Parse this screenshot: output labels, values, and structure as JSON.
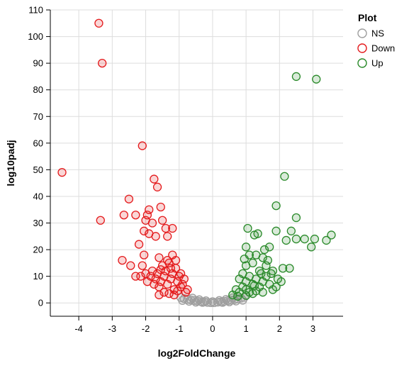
{
  "chart_data": {
    "type": "scatter",
    "xlabel": "log2FoldChange",
    "ylabel": "log10padj",
    "xlim": [
      -4.85,
      3.9
    ],
    "ylim": [
      -5,
      110
    ],
    "x_ticks": [
      -4,
      -3,
      -2,
      -1,
      0,
      1,
      2,
      3
    ],
    "y_ticks": [
      0,
      10,
      20,
      30,
      40,
      50,
      60,
      70,
      80,
      90,
      100,
      110
    ],
    "grid": true,
    "legend": {
      "title": "Plot",
      "placement": "top-right",
      "entries": [
        {
          "label": "NS",
          "color": "#9e9e9e"
        },
        {
          "label": "Down",
          "color": "#e41a1c"
        },
        {
          "label": "Up",
          "color": "#2a8a2a"
        }
      ]
    },
    "series": [
      {
        "name": "NS",
        "color": "#9e9e9e",
        "points": [
          [
            -0.95,
            2.0
          ],
          [
            -0.85,
            1.6
          ],
          [
            -0.75,
            1.3
          ],
          [
            -0.65,
            1.1
          ],
          [
            -0.55,
            0.9
          ],
          [
            -0.45,
            0.7
          ],
          [
            -0.35,
            0.5
          ],
          [
            -0.25,
            0.4
          ],
          [
            -0.15,
            0.2
          ],
          [
            -0.05,
            0.1
          ],
          [
            0.05,
            0.1
          ],
          [
            0.15,
            0.3
          ],
          [
            0.25,
            0.4
          ],
          [
            0.35,
            0.6
          ],
          [
            0.45,
            0.8
          ],
          [
            0.55,
            1.0
          ],
          [
            0.65,
            1.2
          ],
          [
            0.75,
            1.5
          ],
          [
            0.85,
            1.8
          ],
          [
            0.95,
            2.1
          ],
          [
            -0.7,
            0.6
          ],
          [
            -0.5,
            0.3
          ],
          [
            -0.3,
            0.2
          ],
          [
            0.3,
            0.2
          ],
          [
            0.5,
            0.4
          ],
          [
            0.7,
            0.7
          ],
          [
            -0.6,
            1.8
          ],
          [
            -0.4,
            1.2
          ],
          [
            0.4,
            1.3
          ],
          [
            0.6,
            1.9
          ],
          [
            -0.2,
            0.8
          ],
          [
            0.2,
            0.9
          ],
          [
            -0.9,
            0.9
          ],
          [
            0.9,
            1.0
          ],
          [
            0.0,
            0.5
          ]
        ]
      },
      {
        "name": "Down",
        "color": "#e41a1c",
        "points": [
          [
            -3.4,
            105.0
          ],
          [
            -3.3,
            90.0
          ],
          [
            -4.5,
            49.0
          ],
          [
            -2.1,
            59.0
          ],
          [
            -1.75,
            46.5
          ],
          [
            -1.65,
            43.5
          ],
          [
            -2.5,
            39.0
          ],
          [
            -3.35,
            31.0
          ],
          [
            -2.65,
            33.0
          ],
          [
            -2.3,
            33.0
          ],
          [
            -1.55,
            36.0
          ],
          [
            -1.9,
            35.0
          ],
          [
            -1.95,
            33.0
          ],
          [
            -2.0,
            31.0
          ],
          [
            -1.8,
            30.0
          ],
          [
            -1.5,
            31.0
          ],
          [
            -1.4,
            28.0
          ],
          [
            -1.2,
            28.0
          ],
          [
            -2.05,
            27.0
          ],
          [
            -1.9,
            26.0
          ],
          [
            -1.7,
            25.0
          ],
          [
            -1.35,
            25.0
          ],
          [
            -2.2,
            22.0
          ],
          [
            -1.6,
            17.0
          ],
          [
            -1.2,
            18.0
          ],
          [
            -2.7,
            16.0
          ],
          [
            -2.45,
            14.0
          ],
          [
            -2.1,
            14.0
          ],
          [
            -2.3,
            10.0
          ],
          [
            -2.15,
            10.0
          ],
          [
            -2.0,
            11.0
          ],
          [
            -1.95,
            8.0
          ],
          [
            -1.85,
            10.0
          ],
          [
            -1.8,
            12.0
          ],
          [
            -1.75,
            7.0
          ],
          [
            -1.7,
            9.0
          ],
          [
            -1.65,
            11.0
          ],
          [
            -1.6,
            6.0
          ],
          [
            -1.55,
            8.0
          ],
          [
            -1.5,
            14.0
          ],
          [
            -1.45,
            10.0
          ],
          [
            -1.4,
            12.0
          ],
          [
            -1.35,
            7.0
          ],
          [
            -1.3,
            15.0
          ],
          [
            -1.25,
            9.0
          ],
          [
            -1.2,
            11.0
          ],
          [
            -1.15,
            5.0
          ],
          [
            -1.1,
            13.0
          ],
          [
            -1.05,
            8.0
          ],
          [
            -1.0,
            10.0
          ],
          [
            -0.95,
            6.0
          ],
          [
            -0.9,
            7.0
          ],
          [
            -0.85,
            9.0
          ],
          [
            -0.8,
            4.0
          ],
          [
            -0.75,
            5.0
          ],
          [
            -1.45,
            4.0
          ],
          [
            -1.3,
            3.5
          ],
          [
            -1.15,
            3.0
          ],
          [
            -1.05,
            4.5
          ],
          [
            -1.6,
            3.0
          ],
          [
            -1.35,
            16.0
          ],
          [
            -1.25,
            13.0
          ],
          [
            -1.1,
            16.0
          ],
          [
            -0.95,
            11.0
          ],
          [
            -1.55,
            12.5
          ],
          [
            -2.05,
            18.0
          ]
        ]
      },
      {
        "name": "Up",
        "color": "#2a8a2a",
        "points": [
          [
            2.5,
            85.0
          ],
          [
            3.1,
            84.0
          ],
          [
            2.15,
            47.5
          ],
          [
            1.9,
            36.5
          ],
          [
            2.5,
            32.0
          ],
          [
            1.05,
            28.0
          ],
          [
            1.9,
            27.0
          ],
          [
            1.35,
            26.0
          ],
          [
            1.25,
            25.5
          ],
          [
            2.35,
            27.0
          ],
          [
            2.75,
            24.0
          ],
          [
            2.5,
            24.0
          ],
          [
            3.05,
            24.0
          ],
          [
            3.4,
            23.5
          ],
          [
            3.55,
            25.5
          ],
          [
            2.95,
            21.0
          ],
          [
            2.2,
            23.5
          ],
          [
            1.7,
            21.0
          ],
          [
            1.55,
            20.0
          ],
          [
            1.0,
            21.0
          ],
          [
            1.1,
            18.0
          ],
          [
            1.3,
            18.0
          ],
          [
            1.5,
            17.0
          ],
          [
            2.1,
            13.0
          ],
          [
            2.3,
            13.0
          ],
          [
            1.75,
            11.0
          ],
          [
            1.95,
            9.0
          ],
          [
            2.05,
            8.0
          ],
          [
            1.0,
            14.0
          ],
          [
            1.2,
            15.0
          ],
          [
            1.4,
            12.0
          ],
          [
            1.6,
            14.0
          ],
          [
            1.8,
            12.0
          ],
          [
            0.8,
            9.0
          ],
          [
            0.9,
            11.0
          ],
          [
            1.0,
            8.0
          ],
          [
            1.1,
            10.0
          ],
          [
            1.2,
            7.0
          ],
          [
            1.3,
            9.0
          ],
          [
            1.4,
            6.0
          ],
          [
            1.5,
            8.0
          ],
          [
            1.6,
            10.0
          ],
          [
            1.7,
            7.0
          ],
          [
            1.8,
            5.0
          ],
          [
            1.9,
            6.0
          ],
          [
            0.7,
            5.0
          ],
          [
            0.8,
            4.0
          ],
          [
            0.9,
            6.0
          ],
          [
            1.0,
            5.0
          ],
          [
            1.1,
            4.0
          ],
          [
            1.2,
            3.5
          ],
          [
            1.3,
            4.5
          ],
          [
            1.5,
            4.0
          ],
          [
            0.6,
            3.0
          ],
          [
            0.75,
            2.5
          ],
          [
            1.0,
            2.8
          ],
          [
            1.25,
            6.5
          ],
          [
            1.45,
            11.0
          ],
          [
            1.65,
            16.0
          ],
          [
            0.95,
            16.5
          ]
        ]
      }
    ]
  }
}
